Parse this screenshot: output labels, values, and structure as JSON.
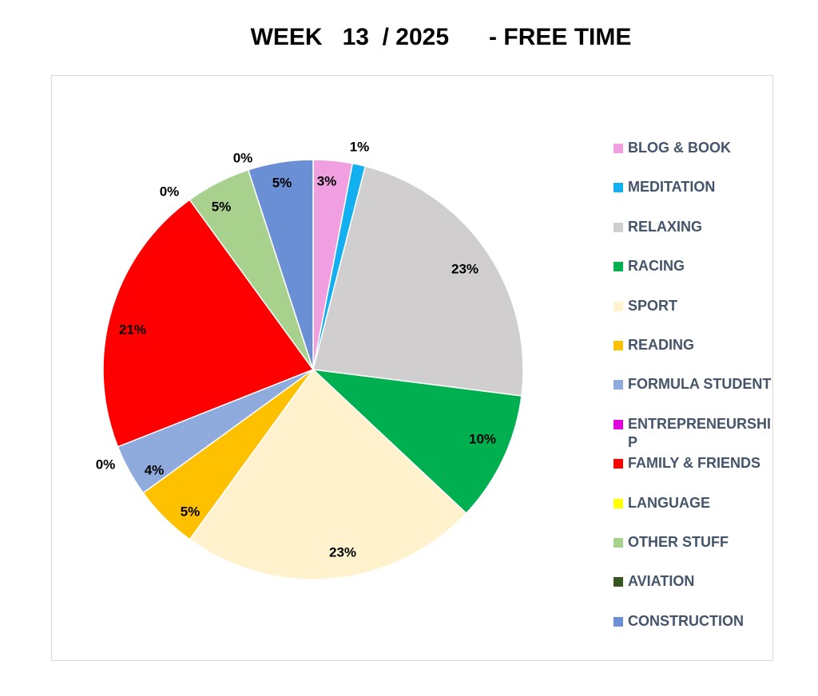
{
  "chart_data": {
    "type": "pie",
    "title": "WEEK   13  / 2025      - FREE TIME",
    "legend_position": "right",
    "slices": [
      {
        "label": "BLOG & BOOK",
        "value": 3,
        "display": "3%",
        "color": "#f0a0e0"
      },
      {
        "label": "MEDITATION",
        "value": 1,
        "display": "1%",
        "color": "#12b0f0"
      },
      {
        "label": "RELAXING",
        "value": 23,
        "display": "23%",
        "color": "#d0cece"
      },
      {
        "label": "RACING",
        "value": 10,
        "display": "10%",
        "color": "#00b050"
      },
      {
        "label": "SPORT",
        "value": 23,
        "display": "23%",
        "color": "#fff2cc"
      },
      {
        "label": "READING",
        "value": 5,
        "display": "5%",
        "color": "#ffc000"
      },
      {
        "label": "FORMULA STUDENT",
        "value": 4,
        "display": "4%",
        "color": "#8faadc"
      },
      {
        "label": "ENTREPRENEURSHIP",
        "value": 0,
        "display": "0%",
        "color": "#e000e0"
      },
      {
        "label": "FAMILY & FRIENDS",
        "value": 21,
        "display": "21%",
        "color": "#ff0000"
      },
      {
        "label": "LANGUAGE",
        "value": 0,
        "display": "0%",
        "color": "#ffff00"
      },
      {
        "label": "OTHER STUFF",
        "value": 5,
        "display": "5%",
        "color": "#a9d18e"
      },
      {
        "label": "AVIATION",
        "value": 0,
        "display": "0%",
        "color": "#375623"
      },
      {
        "label": "CONSTRUCTION",
        "value": 5,
        "display": "5%",
        "color": "#6a8fd4"
      }
    ]
  }
}
